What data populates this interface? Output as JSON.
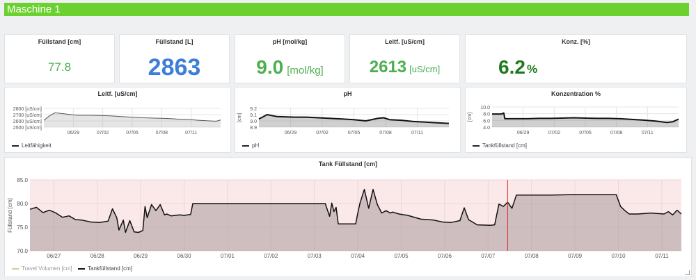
{
  "dashboard": {
    "title": "Maschine 1"
  },
  "stats": [
    {
      "title": "Füllstand [cm]",
      "value": "77.8",
      "unit": "",
      "color": "#4caf50"
    },
    {
      "title": "Füllstand [L]",
      "value": "2863",
      "unit": "",
      "color": "#3d7fd6"
    },
    {
      "title": "pH [mol/kg]",
      "value": "9.0",
      "unit": "[mol/kg]",
      "color": "#4caf50"
    },
    {
      "title": "Leitf. [uS/cm]",
      "value": "2613",
      "unit": "[uS/cm]",
      "color": "#4caf50"
    },
    {
      "title": "Konz. [%]",
      "value": "6.2",
      "unit": "%",
      "color": "#1e7a1e"
    }
  ],
  "mini_charts": [
    {
      "title": "Leitf. [uS/cm]",
      "legend": "Leitfähigkeit"
    },
    {
      "title": "pH",
      "legend": "pH"
    },
    {
      "title": "Konzentration %",
      "legend": "Tankfüllstand [cm]"
    }
  ],
  "tank": {
    "title": "Tank Füllstand [cm]",
    "legend_travel": "Travel Volumen [cm]",
    "legend_tank": "Tankfüllstand [cm]"
  },
  "chart_data": [
    {
      "type": "area",
      "title": "Leitf. [uS/cm]",
      "ylabel": "",
      "yticks": [
        "2800 [uS/cm]",
        "2700 [uS/cm]",
        "2600 [uS/cm]",
        "2500 [uS/cm]"
      ],
      "ylim": [
        2500,
        2800
      ],
      "xticks": [
        "06/29",
        "07/02",
        "07/05",
        "07/08",
        "07/11"
      ],
      "xlim": [
        0,
        16
      ],
      "series": [
        {
          "name": "Leitfähigkeit",
          "x": [
            0,
            0.5,
            1,
            2,
            3,
            4,
            5,
            6,
            7,
            8,
            9,
            10,
            11,
            12,
            13,
            14,
            15,
            15.6,
            16
          ],
          "values": [
            2610,
            2680,
            2730,
            2710,
            2690,
            2690,
            2685,
            2680,
            2670,
            2660,
            2650,
            2645,
            2640,
            2630,
            2625,
            2610,
            2600,
            2595,
            2615
          ]
        }
      ],
      "grid": true,
      "legend": "bottom-left"
    },
    {
      "type": "area",
      "title": "pH",
      "ylabel": "[cm]",
      "yticks": [
        "9.2",
        "9.1",
        "9.0",
        "8.9"
      ],
      "ylim": [
        8.9,
        9.2
      ],
      "xticks": [
        "06/29",
        "07/02",
        "07/05",
        "07/08",
        "07/11"
      ],
      "xlim": [
        0,
        16
      ],
      "series": [
        {
          "name": "pH",
          "x": [
            0,
            0.7,
            1.5,
            3,
            4,
            5,
            6,
            7,
            8,
            9,
            10,
            10.5,
            11,
            12,
            13,
            14,
            15,
            16
          ],
          "values": [
            9.03,
            9.1,
            9.07,
            9.06,
            9.06,
            9.05,
            9.04,
            9.03,
            9.02,
            9.0,
            9.04,
            9.05,
            9.02,
            9.01,
            8.99,
            8.98,
            8.97,
            8.96
          ]
        }
      ],
      "grid": true,
      "legend": "bottom-left"
    },
    {
      "type": "area",
      "title": "Konzentration %",
      "ylabel": "[cm]",
      "yticks": [
        "10.0",
        "8.0",
        "6.0",
        "4.0"
      ],
      "ylim": [
        4,
        10
      ],
      "xticks": [
        "06/29",
        "07/02",
        "07/05",
        "07/08",
        "07/11"
      ],
      "xlim": [
        0,
        16
      ],
      "series": [
        {
          "name": "Tankfüllstand [cm]",
          "x": [
            0,
            0.8,
            1.0,
            1.1,
            3,
            4,
            5,
            6,
            7,
            8,
            9,
            10,
            11,
            12,
            13,
            14,
            15,
            15.5,
            16
          ],
          "values": [
            7.9,
            7.9,
            8.2,
            6.5,
            6.5,
            6.6,
            6.6,
            6.7,
            6.8,
            6.7,
            6.6,
            6.6,
            6.5,
            6.3,
            6.1,
            5.8,
            5.4,
            5.6,
            6.4
          ]
        }
      ],
      "grid": true,
      "legend": "bottom-left"
    },
    {
      "type": "line",
      "title": "Tank Füllstand [cm]",
      "ylabel": "Füllstand [cm]",
      "yticks": [
        "85.0",
        "80.0",
        "75.0",
        "70.0"
      ],
      "ylim": [
        70,
        85
      ],
      "xticks": [
        "06/27",
        "06/28",
        "06/29",
        "06/30",
        "07/01",
        "07/02",
        "07/03",
        "07/04",
        "07/05",
        "07/06",
        "07/07",
        "07/08",
        "07/09",
        "07/10",
        "07/11"
      ],
      "xlim": [
        0,
        15
      ],
      "series": [
        {
          "name": "Travel Volumen [cm]",
          "x": [],
          "values": []
        },
        {
          "name": "Tankfüllstand [cm]",
          "x": [
            0,
            0.15,
            0.3,
            0.45,
            0.6,
            0.75,
            0.9,
            1.05,
            1.2,
            1.4,
            1.6,
            1.8,
            1.9,
            2.0,
            2.05,
            2.15,
            2.2,
            2.3,
            2.4,
            2.5,
            2.6,
            2.65,
            2.7,
            2.8,
            2.9,
            3.0,
            3.1,
            3.15,
            3.25,
            3.35,
            3.45,
            3.55,
            3.7,
            3.75,
            4.0,
            5.0,
            6.0,
            6.8,
            6.9,
            6.95,
            7.0,
            7.05,
            7.1,
            7.5,
            7.55,
            7.6,
            7.7,
            7.8,
            7.9,
            8.0,
            8.1,
            8.2,
            8.3,
            8.35,
            8.5,
            8.7,
            9.0,
            9.3,
            9.5,
            9.7,
            9.9,
            10.0,
            10.1,
            10.3,
            10.6,
            10.7,
            10.8,
            10.9,
            11.0,
            11.1,
            11.2,
            11.5,
            12.0,
            12.5,
            13.0,
            13.5,
            13.6,
            13.7,
            13.8,
            14.0,
            14.3,
            14.6,
            14.7,
            14.8,
            14.9,
            15.0
          ],
          "values": [
            78.8,
            79.2,
            78.1,
            78.6,
            78.0,
            77.1,
            77.4,
            76.6,
            76.5,
            76.1,
            76.0,
            76.3,
            78.9,
            77.0,
            74.4,
            76.5,
            73.9,
            76.4,
            74.0,
            73.9,
            74.3,
            79.4,
            77.0,
            79.8,
            78.5,
            79.8,
            77.6,
            77.8,
            77.4,
            77.5,
            77.6,
            77.5,
            77.7,
            80.0,
            80.0,
            80.0,
            80.0,
            80.0,
            77.3,
            80.1,
            78.3,
            79.2,
            75.7,
            75.7,
            78.0,
            80.1,
            83.0,
            79.0,
            83.0,
            79.8,
            78.0,
            78.5,
            78.0,
            78.2,
            77.8,
            77.5,
            76.7,
            76.5,
            76.1,
            76.0,
            76.4,
            79.1,
            76.6,
            75.5,
            75.4,
            75.5,
            79.9,
            79.4,
            80.3,
            79.0,
            81.8,
            81.8,
            81.8,
            81.9,
            81.9,
            81.9,
            79.4,
            78.5,
            77.8,
            77.8,
            78.0,
            77.8,
            78.3,
            77.6,
            78.6,
            77.8
          ]
        }
      ],
      "marker_x": 11.0,
      "grid": true,
      "legend": "bottom-left"
    }
  ]
}
